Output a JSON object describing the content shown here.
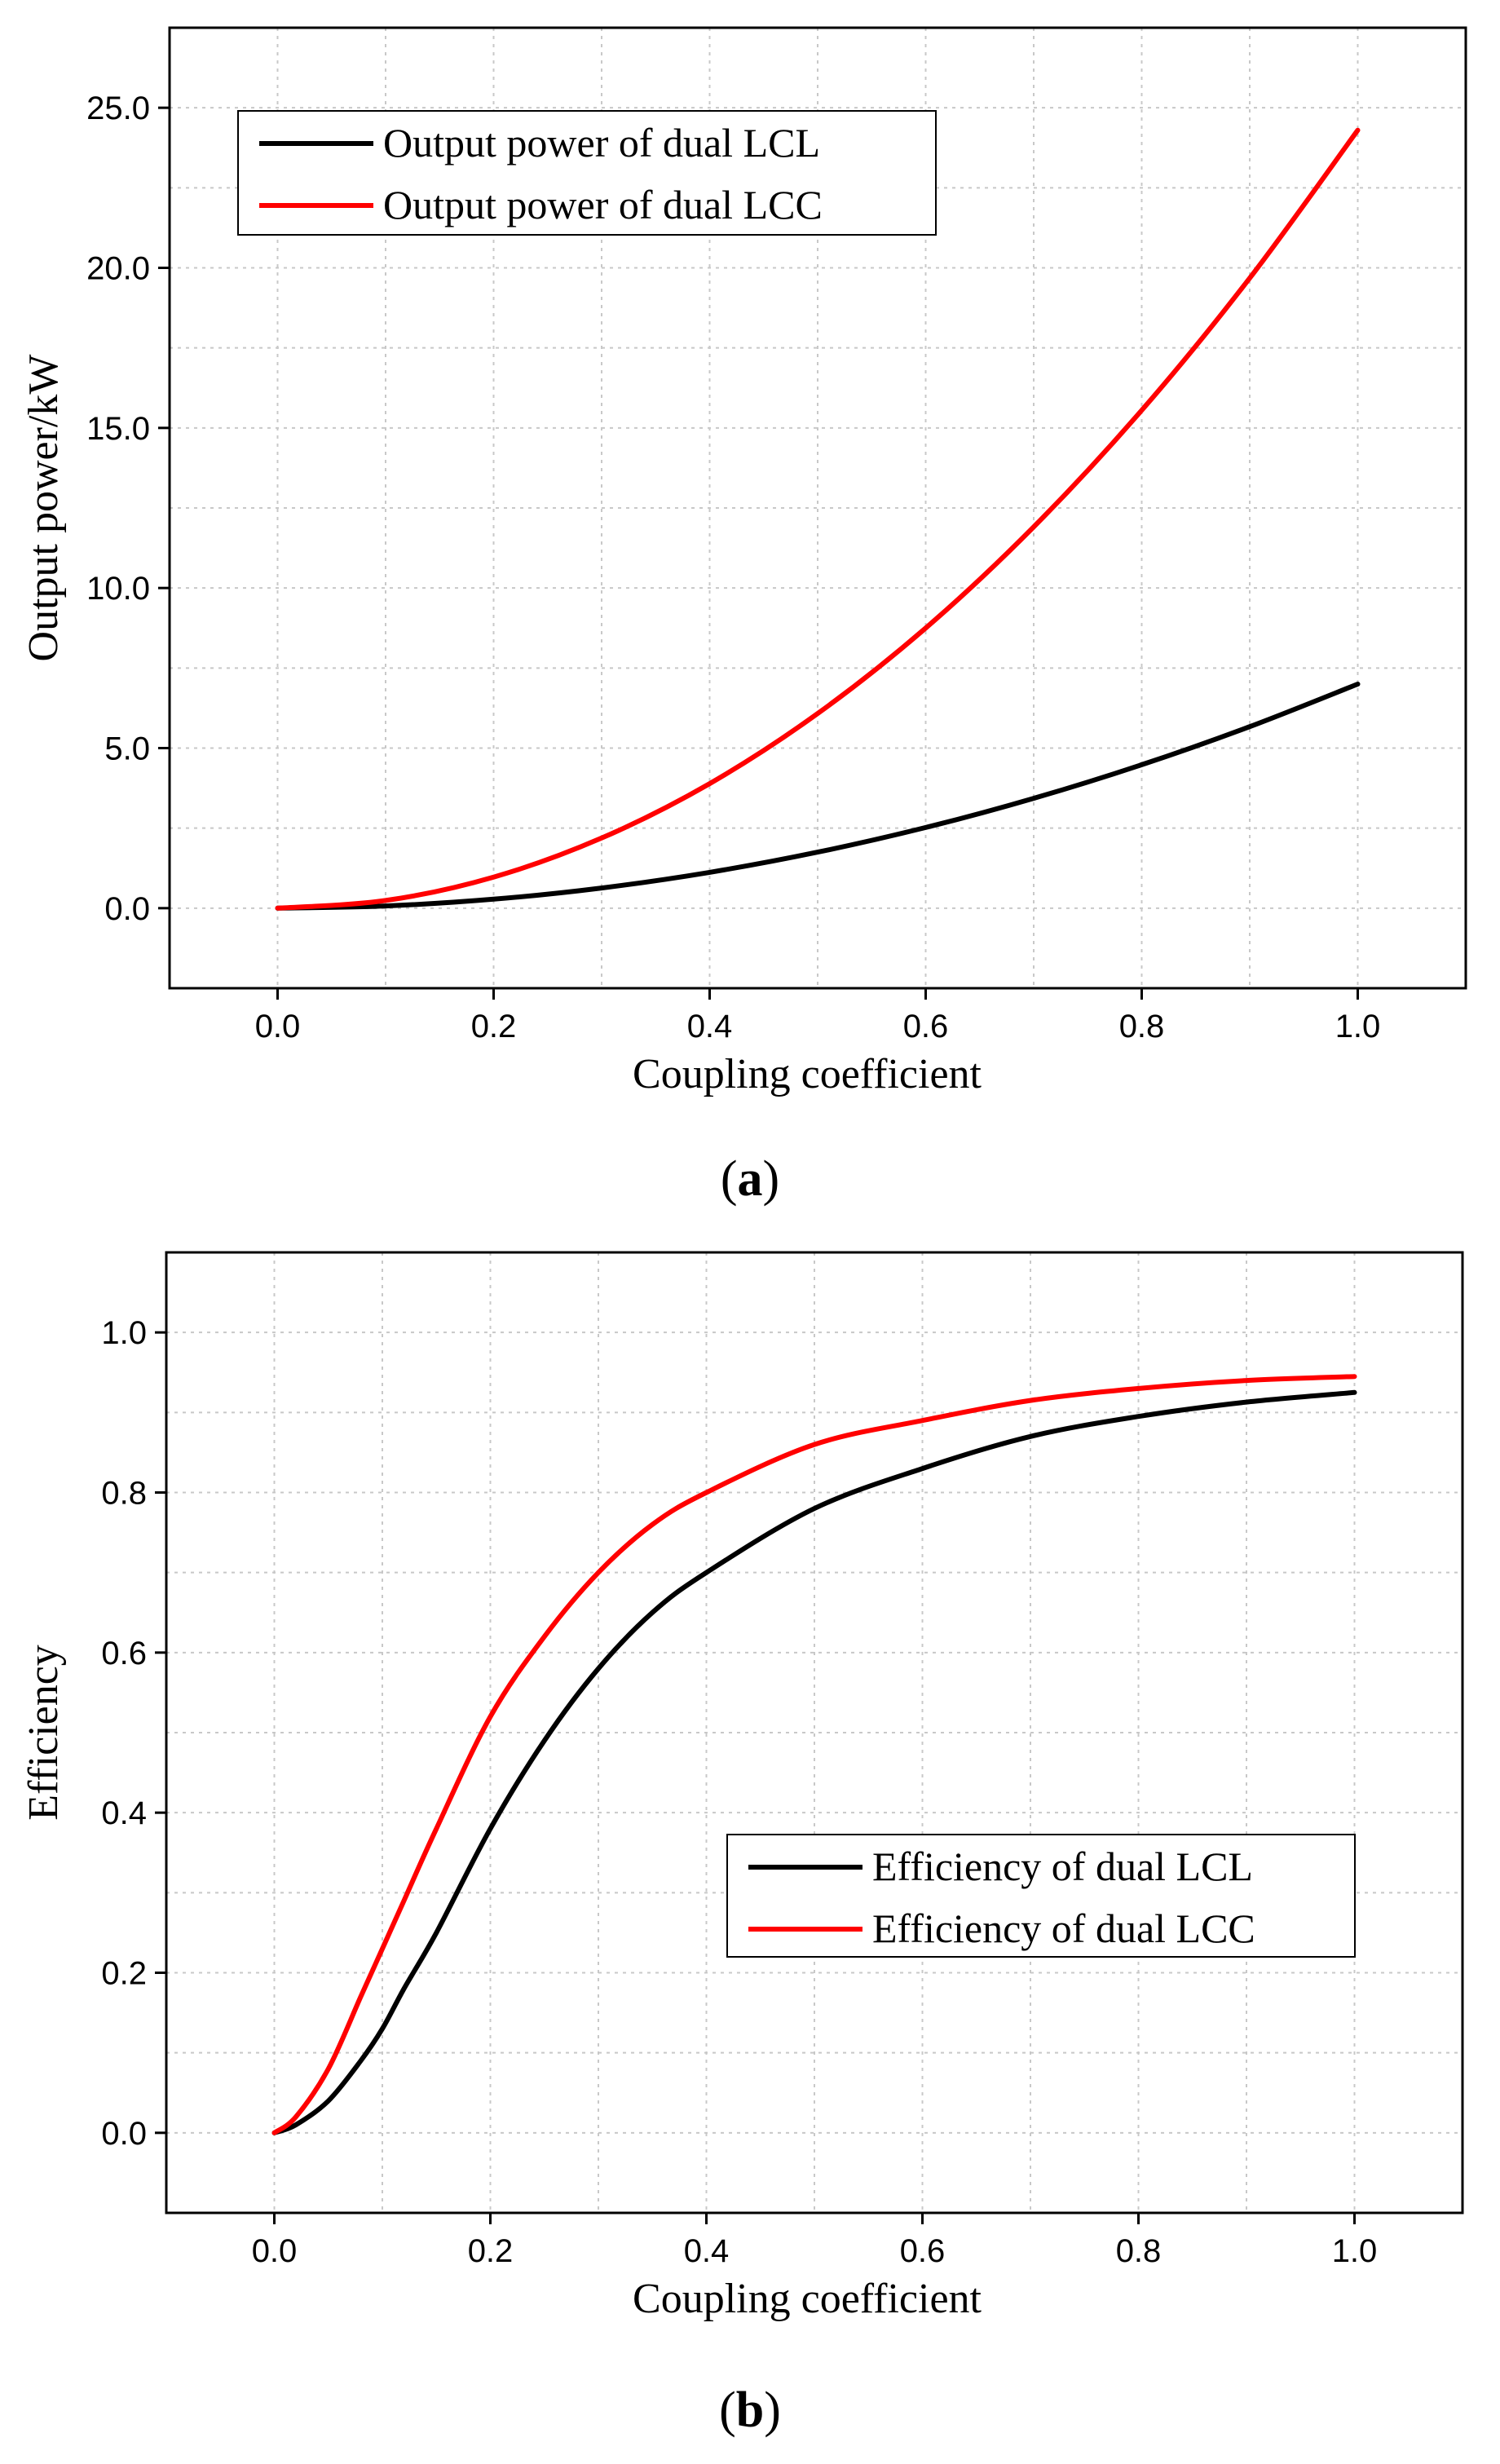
{
  "chart_data": [
    {
      "type": "line",
      "panel": "a",
      "caption_letter": "a",
      "xlabel": "Coupling coefficient",
      "ylabel": "Output power/kW",
      "xlim": [
        -0.1,
        1.1
      ],
      "ylim": [
        -2.5,
        27.5
      ],
      "xticks": [
        0.0,
        0.2,
        0.4,
        0.6,
        0.8,
        1.0
      ],
      "xtick_labels": [
        "0.0",
        "0.2",
        "0.4",
        "0.6",
        "0.8",
        "1.0"
      ],
      "yticks": [
        0.0,
        5.0,
        10.0,
        15.0,
        20.0,
        25.0
      ],
      "ytick_labels": [
        "0.0",
        "5.0",
        "10.0",
        "15.0",
        "20.0",
        "25.0"
      ],
      "grid": true,
      "legend_position": "top-left",
      "x": [
        0.0,
        0.1,
        0.2,
        0.3,
        0.4,
        0.5,
        0.6,
        0.7,
        0.8,
        0.9,
        1.0
      ],
      "series": [
        {
          "name": "Output power of dual LCL",
          "color": "#000000",
          "values": [
            0.0,
            0.07,
            0.28,
            0.63,
            1.12,
            1.75,
            2.52,
            3.43,
            4.48,
            5.67,
            7.0
          ]
        },
        {
          "name": "Output power of dual LCC",
          "color": "#ff0000",
          "values": [
            0.0,
            0.24,
            0.97,
            2.19,
            3.89,
            6.08,
            8.75,
            11.91,
            15.55,
            19.68,
            24.3
          ]
        }
      ]
    },
    {
      "type": "line",
      "panel": "b",
      "caption_letter": "b",
      "xlabel": "Coupling coefficient",
      "ylabel": "Efficiency",
      "xlim": [
        -0.1,
        1.1
      ],
      "ylim": [
        -0.1,
        1.1
      ],
      "xticks": [
        0.0,
        0.2,
        0.4,
        0.6,
        0.8,
        1.0
      ],
      "xtick_labels": [
        "0.0",
        "0.2",
        "0.4",
        "0.6",
        "0.8",
        "1.0"
      ],
      "yticks": [
        0.0,
        0.2,
        0.4,
        0.6,
        0.8,
        1.0
      ],
      "ytick_labels": [
        "0.0",
        "0.2",
        "0.4",
        "0.6",
        "0.8",
        "1.0"
      ],
      "grid": true,
      "legend_position": "bottom-right",
      "x": [
        0.0,
        0.02,
        0.05,
        0.08,
        0.1,
        0.12,
        0.15,
        0.2,
        0.25,
        0.3,
        0.35,
        0.4,
        0.5,
        0.6,
        0.7,
        0.8,
        0.9,
        1.0
      ],
      "series": [
        {
          "name": "Efficiency of dual LCL",
          "color": "#000000",
          "values": [
            0.0,
            0.01,
            0.04,
            0.09,
            0.13,
            0.18,
            0.25,
            0.38,
            0.49,
            0.58,
            0.65,
            0.7,
            0.78,
            0.83,
            0.87,
            0.895,
            0.913,
            0.925
          ]
        },
        {
          "name": "Efficiency of dual LCC",
          "color": "#ff0000",
          "values": [
            0.0,
            0.02,
            0.08,
            0.17,
            0.23,
            0.29,
            0.38,
            0.52,
            0.62,
            0.7,
            0.76,
            0.8,
            0.86,
            0.89,
            0.915,
            0.93,
            0.94,
            0.945
          ]
        }
      ]
    }
  ]
}
